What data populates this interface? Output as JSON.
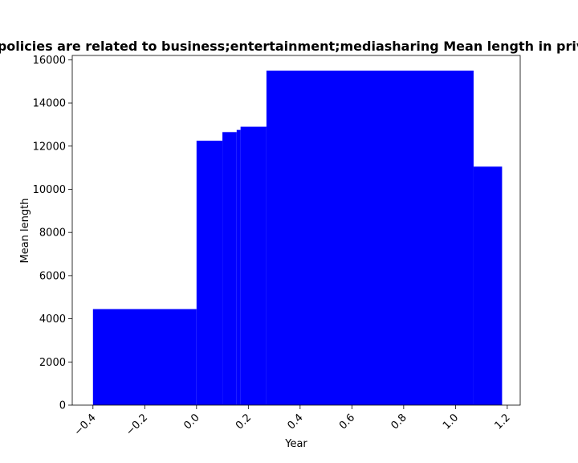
{
  "chart_data": {
    "type": "bar",
    "title": "Number of Privacy policies are related to business;entertainment;mediasharing Mean length in privacy policy, by year",
    "xlabel": "Year",
    "ylabel": "Mean length",
    "xlim": [
      -0.48,
      1.25
    ],
    "ylim": [
      0,
      16200
    ],
    "xticks": [
      -0.4,
      -0.2,
      0.0,
      0.2,
      0.4,
      0.6,
      0.8,
      1.0,
      1.2
    ],
    "xtick_labels": [
      "−0.4",
      "−0.2",
      "0.0",
      "0.2",
      "0.4",
      "0.6",
      "0.8",
      "1.0",
      "1.2"
    ],
    "yticks": [
      0,
      2000,
      4000,
      6000,
      8000,
      10000,
      12000,
      14000,
      16000
    ],
    "ytick_labels": [
      "0",
      "2000",
      "4000",
      "6000",
      "8000",
      "10000",
      "12000",
      "14000",
      "16000"
    ],
    "grid": false,
    "legend": "none",
    "bar_color": "#0000ff",
    "bars": [
      {
        "x0": -0.4,
        "x1": 0.0,
        "value": 4450
      },
      {
        "x0": 0.0,
        "x1": 0.1,
        "value": 12250
      },
      {
        "x0": 0.1,
        "x1": 0.155,
        "value": 12650
      },
      {
        "x0": 0.155,
        "x1": 0.17,
        "value": 12750
      },
      {
        "x0": 0.17,
        "x1": 0.27,
        "value": 12900
      },
      {
        "x0": 0.27,
        "x1": 1.07,
        "value": 15500
      },
      {
        "x0": 1.07,
        "x1": 1.18,
        "value": 11050
      }
    ]
  }
}
